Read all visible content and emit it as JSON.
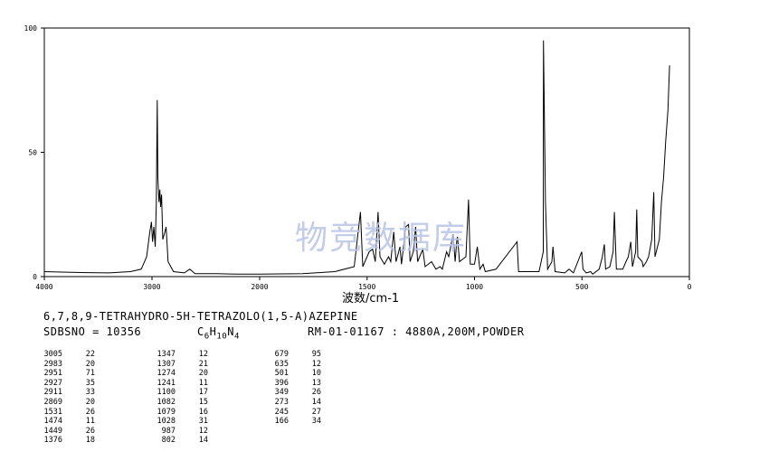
{
  "chart_data": {
    "type": "line",
    "xlabel": "波数/cm-1",
    "ylabel": "",
    "xlim": [
      4000,
      0
    ],
    "ylim": [
      0,
      100
    ],
    "x_ticks": [
      "4000",
      "3000",
      "2000",
      "1500",
      "1000",
      "500",
      "0"
    ],
    "y_ticks": [
      "0",
      "50",
      "100"
    ],
    "grid": false,
    "series": [
      {
        "points": [
          [
            4000,
            2
          ],
          [
            3800,
            1.8
          ],
          [
            3600,
            1.6
          ],
          [
            3400,
            1.5
          ],
          [
            3200,
            2
          ],
          [
            3100,
            3
          ],
          [
            3050,
            8
          ],
          [
            3020,
            18
          ],
          [
            3005,
            22
          ],
          [
            2995,
            14
          ],
          [
            2983,
            20
          ],
          [
            2970,
            12
          ],
          [
            2960,
            30
          ],
          [
            2951,
            71
          ],
          [
            2945,
            40
          ],
          [
            2935,
            30
          ],
          [
            2927,
            35
          ],
          [
            2920,
            28
          ],
          [
            2911,
            33
          ],
          [
            2900,
            15
          ],
          [
            2880,
            18
          ],
          [
            2869,
            20
          ],
          [
            2850,
            6
          ],
          [
            2800,
            2
          ],
          [
            2700,
            1.5
          ],
          [
            2650,
            3
          ],
          [
            2600,
            1.2
          ],
          [
            2400,
            1.2
          ],
          [
            2200,
            1
          ],
          [
            2000,
            1
          ],
          [
            1800,
            1.2
          ],
          [
            1650,
            2
          ],
          [
            1560,
            4
          ],
          [
            1531,
            26
          ],
          [
            1520,
            4
          ],
          [
            1490,
            10
          ],
          [
            1474,
            11
          ],
          [
            1462,
            6
          ],
          [
            1449,
            26
          ],
          [
            1440,
            8
          ],
          [
            1420,
            5
          ],
          [
            1400,
            8
          ],
          [
            1390,
            6
          ],
          [
            1376,
            18
          ],
          [
            1365,
            6
          ],
          [
            1347,
            12
          ],
          [
            1340,
            5
          ],
          [
            1320,
            20
          ],
          [
            1307,
            21
          ],
          [
            1300,
            6
          ],
          [
            1285,
            10
          ],
          [
            1274,
            20
          ],
          [
            1265,
            6
          ],
          [
            1241,
            11
          ],
          [
            1230,
            4
          ],
          [
            1200,
            6
          ],
          [
            1180,
            3
          ],
          [
            1160,
            4
          ],
          [
            1150,
            3
          ],
          [
            1130,
            10
          ],
          [
            1120,
            8
          ],
          [
            1100,
            17
          ],
          [
            1090,
            6
          ],
          [
            1082,
            15
          ],
          [
            1079,
            16
          ],
          [
            1070,
            6
          ],
          [
            1040,
            8
          ],
          [
            1028,
            31
          ],
          [
            1020,
            5
          ],
          [
            1000,
            5
          ],
          [
            987,
            12
          ],
          [
            975,
            3
          ],
          [
            960,
            5
          ],
          [
            950,
            2
          ],
          [
            900,
            3
          ],
          [
            802,
            14
          ],
          [
            795,
            2
          ],
          [
            760,
            2
          ],
          [
            700,
            2
          ],
          [
            680,
            10
          ],
          [
            679,
            95
          ],
          [
            670,
            30
          ],
          [
            660,
            3
          ],
          [
            640,
            6
          ],
          [
            635,
            12
          ],
          [
            625,
            2
          ],
          [
            580,
            1.5
          ],
          [
            560,
            3
          ],
          [
            540,
            1.5
          ],
          [
            501,
            10
          ],
          [
            495,
            3
          ],
          [
            480,
            1.5
          ],
          [
            460,
            2
          ],
          [
            450,
            1
          ],
          [
            420,
            3
          ],
          [
            405,
            8
          ],
          [
            396,
            13
          ],
          [
            390,
            3
          ],
          [
            370,
            4
          ],
          [
            355,
            10
          ],
          [
            349,
            26
          ],
          [
            340,
            3
          ],
          [
            310,
            3
          ],
          [
            295,
            6
          ],
          [
            284,
            8
          ],
          [
            273,
            14
          ],
          [
            265,
            4
          ],
          [
            250,
            10
          ],
          [
            245,
            27
          ],
          [
            240,
            8
          ],
          [
            220,
            6
          ],
          [
            215,
            4
          ],
          [
            200,
            6
          ],
          [
            190,
            8
          ],
          [
            175,
            15
          ],
          [
            166,
            34
          ],
          [
            160,
            8
          ],
          [
            140,
            15
          ],
          [
            130,
            30
          ],
          [
            120,
            40
          ],
          [
            110,
            55
          ],
          [
            100,
            67
          ],
          [
            92,
            85
          ]
        ]
      }
    ]
  },
  "watermark": "物竞数据库",
  "compound_name": "6,7,8,9-TETRAHYDRO-5H-TETRAZOLO(1,5-A)AZEPINE",
  "sdbs_no": "SDBSNO = 10356",
  "formula": {
    "c": "C",
    "c_n": "6",
    "h": "H",
    "h_n": "10",
    "n": "N",
    "n_n": "4"
  },
  "ref": "RM-01-01167 : 4880A,200M,POWDER",
  "peak_table": [
    [
      [
        "3005",
        "22"
      ],
      [
        "2983",
        "20"
      ],
      [
        "2951",
        "71"
      ],
      [
        "2927",
        "35"
      ],
      [
        "2911",
        "33"
      ],
      [
        "2869",
        "20"
      ],
      [
        "1531",
        "26"
      ],
      [
        "1474",
        "11"
      ],
      [
        "1449",
        "26"
      ],
      [
        "1376",
        "18"
      ]
    ],
    [
      [
        "1347",
        "12"
      ],
      [
        "1307",
        "21"
      ],
      [
        "1274",
        "20"
      ],
      [
        "1241",
        "11"
      ],
      [
        "1100",
        "17"
      ],
      [
        "1082",
        "15"
      ],
      [
        "1079",
        "16"
      ],
      [
        "1028",
        "31"
      ],
      [
        "987",
        "12"
      ],
      [
        "802",
        "14"
      ]
    ],
    [
      [
        "679",
        "95"
      ],
      [
        "635",
        "12"
      ],
      [
        "501",
        "10"
      ],
      [
        "396",
        "13"
      ],
      [
        "349",
        "26"
      ],
      [
        "273",
        "14"
      ],
      [
        "245",
        "27"
      ],
      [
        "166",
        "34"
      ]
    ]
  ]
}
